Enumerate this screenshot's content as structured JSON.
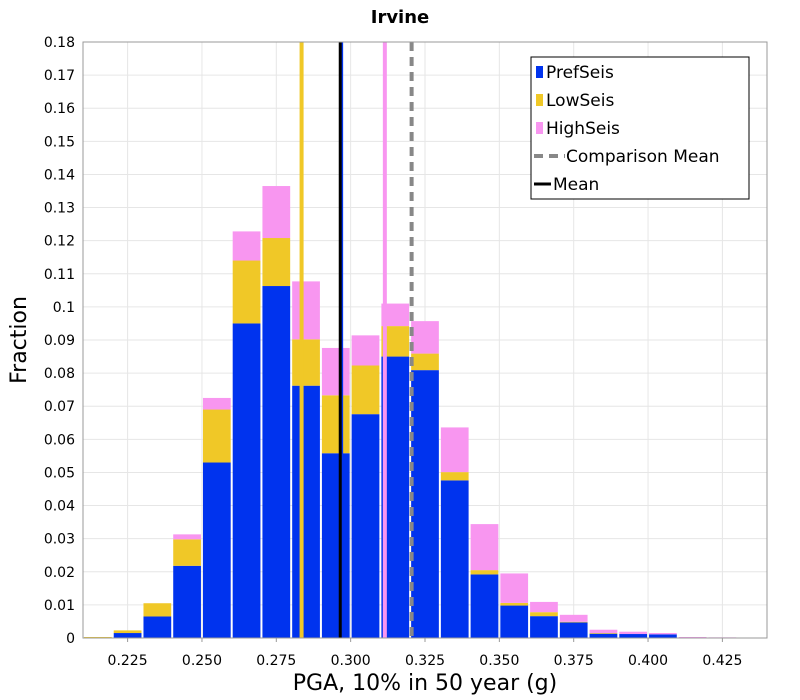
{
  "chart_data": {
    "type": "bar",
    "stacked": true,
    "title": "Irvine",
    "xlabel": "PGA, 10% in 50 year (g)",
    "ylabel": "Fraction",
    "xlim": [
      0.21,
      0.44
    ],
    "ylim": [
      0,
      0.18
    ],
    "bin_width": 0.01,
    "x_ticks": [
      "0.225",
      "0.250",
      "0.275",
      "0.300",
      "0.325",
      "0.350",
      "0.375",
      "0.400",
      "0.425"
    ],
    "y_ticks": [
      "0",
      "0.01",
      "0.02",
      "0.03",
      "0.04",
      "0.05",
      "0.06",
      "0.07",
      "0.08",
      "0.09",
      "0.1",
      "0.11",
      "0.12",
      "0.13",
      "0.14",
      "0.15",
      "0.16",
      "0.17",
      "0.18"
    ],
    "grid": true,
    "legend_position": "top-right",
    "bins": [
      0.215,
      0.225,
      0.235,
      0.245,
      0.255,
      0.265,
      0.275,
      0.285,
      0.295,
      0.305,
      0.315,
      0.325,
      0.335,
      0.345,
      0.355,
      0.365,
      0.375,
      0.385,
      0.395,
      0.405,
      0.415,
      0.425
    ],
    "series": [
      {
        "name": "PrefSeis",
        "color": "#0033ee",
        "values": [
          0.0,
          0.0015,
          0.0065,
          0.0218,
          0.053,
          0.095,
          0.1063,
          0.0762,
          0.0558,
          0.0676,
          0.085,
          0.0809,
          0.0476,
          0.0192,
          0.0098,
          0.0066,
          0.0047,
          0.0013,
          0.0012,
          0.0011,
          0.0,
          0.0
        ]
      },
      {
        "name": "LowSeis",
        "color": "#f0c827",
        "values": [
          0.0003,
          0.0008,
          0.004,
          0.008,
          0.016,
          0.019,
          0.0145,
          0.014,
          0.0175,
          0.0147,
          0.0092,
          0.005,
          0.0025,
          0.0013,
          0.0008,
          0.0012,
          0.0002,
          0.0002,
          0.0,
          0.0,
          0.0,
          0.0
        ]
      },
      {
        "name": "HighSeis",
        "color": "#f896f0",
        "values": [
          0.0,
          0.0,
          0.0,
          0.0015,
          0.0035,
          0.0088,
          0.0157,
          0.0175,
          0.0143,
          0.0091,
          0.0068,
          0.0098,
          0.0135,
          0.0139,
          0.0089,
          0.0031,
          0.0021,
          0.001,
          0.0007,
          0.0004,
          0.0003,
          0.0002
        ]
      }
    ],
    "lines": [
      {
        "name": "LowSeis mean",
        "x": 0.2835,
        "color": "#f0c827",
        "style": "solid"
      },
      {
        "name": "HighSeis mean",
        "x": 0.3115,
        "color": "#f896f0",
        "style": "solid"
      },
      {
        "name": "PrefSeis mean",
        "x": 0.2968,
        "color": "#0033ee",
        "style": "solid"
      },
      {
        "name": "Mean",
        "x": 0.2965,
        "color": "#000000",
        "style": "solid"
      },
      {
        "name": "Comparison Mean",
        "x": 0.3205,
        "color": "#888888",
        "style": "dashed"
      }
    ],
    "legend": [
      {
        "label": "PrefSeis",
        "kind": "box",
        "color": "#0033ee"
      },
      {
        "label": "LowSeis",
        "kind": "box",
        "color": "#f0c827"
      },
      {
        "label": "HighSeis",
        "kind": "box",
        "color": "#f896f0"
      },
      {
        "label": "Comparison Mean",
        "kind": "dash",
        "color": "#888888"
      },
      {
        "label": "Mean",
        "kind": "line",
        "color": "#000000"
      }
    ]
  }
}
